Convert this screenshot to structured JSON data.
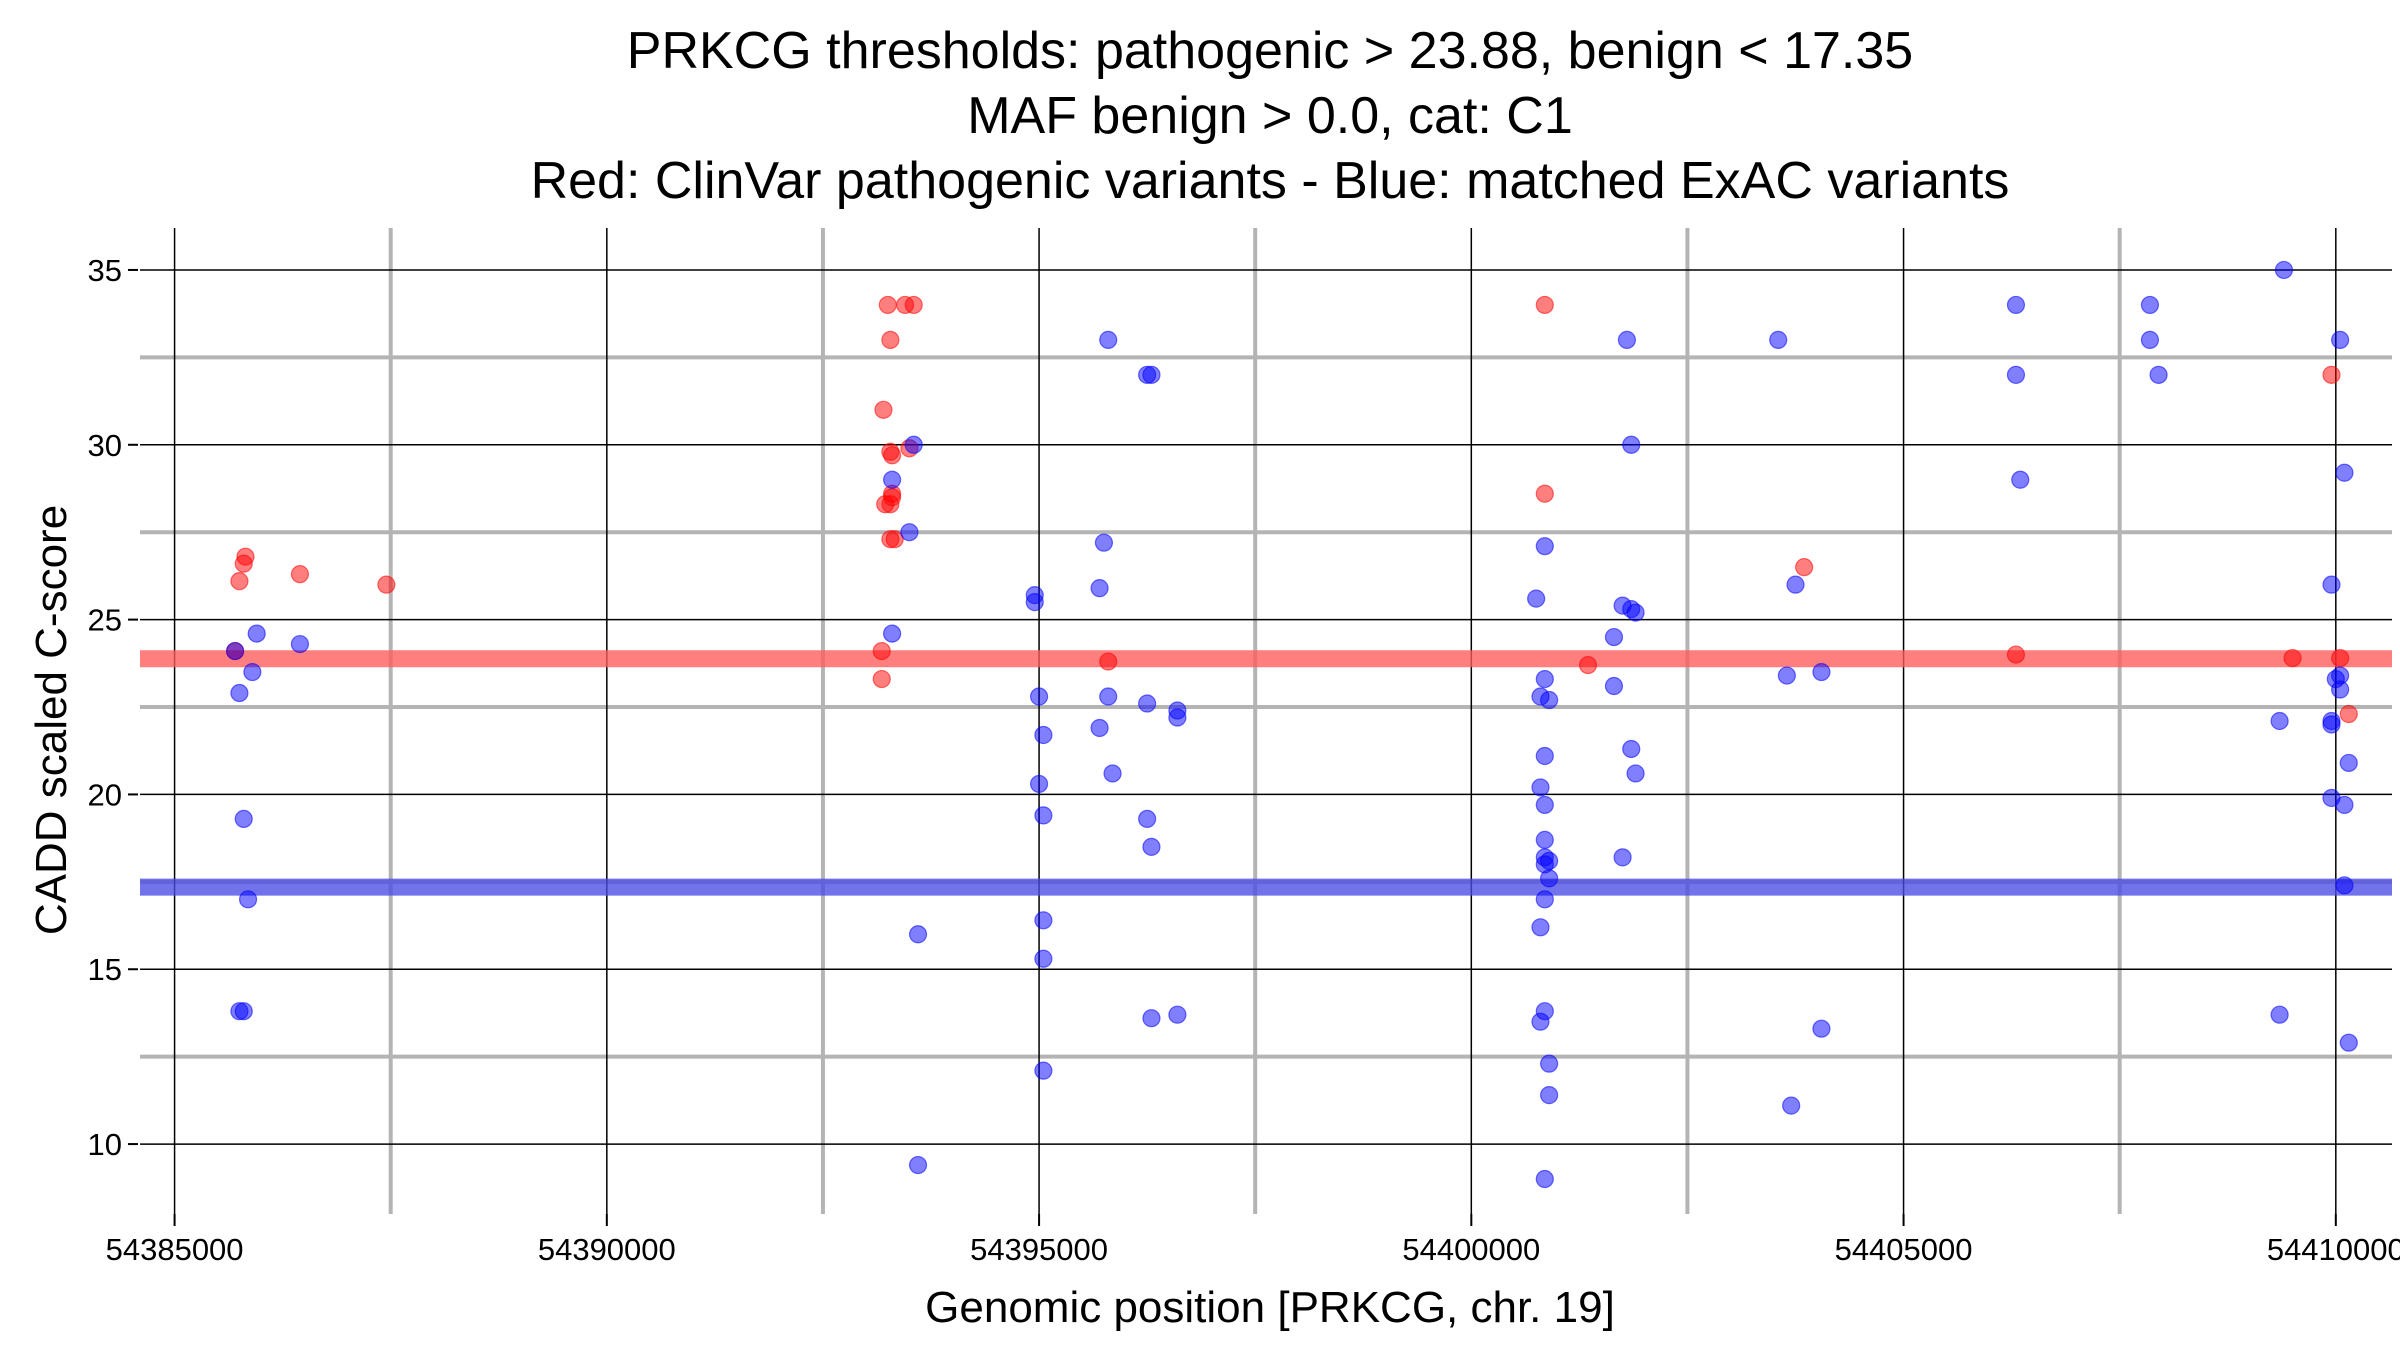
{
  "chart_data": {
    "type": "scatter",
    "title_lines": [
      "PRKCG thresholds: pathogenic > 23.88, benign < 17.35",
      "MAF benign > 0.0, cat: C1",
      "Red: ClinVar pathogenic variants - Blue: matched ExAC variants"
    ],
    "xlabel": "Genomic position [PRKCG, chr. 19]",
    "ylabel": "CADD scaled C-score",
    "xlim": [
      54384600,
      54410650
    ],
    "ylim": [
      8,
      36.2
    ],
    "x_ticks": [
      54385000,
      54390000,
      54395000,
      54400000,
      54405000,
      54410000
    ],
    "x_tick_labels": [
      "54385000",
      "54390000",
      "54395000",
      "54400000",
      "54405000",
      "54410000"
    ],
    "x_minor_grid": [
      54387500,
      54392500,
      54397500,
      54402500,
      54407500
    ],
    "y_ticks": [
      10,
      15,
      20,
      25,
      30,
      35
    ],
    "y_tick_labels": [
      "10",
      "15",
      "20",
      "25",
      "30",
      "35"
    ],
    "y_minor_grid": [
      12.5,
      17.5,
      22.5,
      27.5,
      32.5
    ],
    "grid": true,
    "thresholds": [
      {
        "name": "pathogenic",
        "value": 23.88,
        "color": "#ff5a5a"
      },
      {
        "name": "benign",
        "value": 17.35,
        "color": "#4a4ae6"
      }
    ],
    "series": [
      {
        "name": "ClinVar pathogenic",
        "color": "#ff0000",
        "points": [
          [
            54385750,
            26.1
          ],
          [
            54385800,
            26.6
          ],
          [
            54385820,
            26.8
          ],
          [
            54386450,
            26.3
          ],
          [
            54387450,
            26.0
          ],
          [
            54385700,
            24.1
          ],
          [
            54393250,
            34.0
          ],
          [
            54393450,
            34.0
          ],
          [
            54393550,
            34.0
          ],
          [
            54393280,
            33.0
          ],
          [
            54393200,
            31.0
          ],
          [
            54393280,
            29.8
          ],
          [
            54393300,
            29.7
          ],
          [
            54393500,
            29.9
          ],
          [
            54393300,
            28.6
          ],
          [
            54393300,
            28.5
          ],
          [
            54393280,
            28.3
          ],
          [
            54393220,
            28.3
          ],
          [
            54393280,
            27.3
          ],
          [
            54393330,
            27.3
          ],
          [
            54393180,
            24.1
          ],
          [
            54393180,
            23.3
          ],
          [
            54395800,
            23.8
          ],
          [
            54400850,
            34.0
          ],
          [
            54400850,
            28.6
          ],
          [
            54401350,
            23.7
          ],
          [
            54403850,
            26.5
          ],
          [
            54406300,
            24.0
          ],
          [
            54409950,
            32.0
          ],
          [
            54409500,
            23.9
          ],
          [
            54410050,
            23.9
          ],
          [
            54410150,
            22.3
          ]
        ]
      },
      {
        "name": "matched ExAC",
        "color": "#0000ff",
        "points": [
          [
            54385950,
            24.6
          ],
          [
            54386450,
            24.3
          ],
          [
            54385700,
            24.1
          ],
          [
            54385900,
            23.5
          ],
          [
            54385750,
            22.9
          ],
          [
            54385800,
            19.3
          ],
          [
            54385850,
            17.0
          ],
          [
            54385750,
            13.8
          ],
          [
            54385800,
            13.8
          ],
          [
            54393300,
            29.0
          ],
          [
            54393550,
            30.0
          ],
          [
            54393500,
            27.5
          ],
          [
            54393300,
            24.6
          ],
          [
            54393600,
            16.0
          ],
          [
            54393600,
            9.4
          ],
          [
            54394950,
            25.7
          ],
          [
            54394950,
            25.5
          ],
          [
            54395000,
            22.8
          ],
          [
            54395050,
            21.7
          ],
          [
            54395000,
            20.3
          ],
          [
            54395050,
            19.4
          ],
          [
            54395050,
            16.4
          ],
          [
            54395050,
            15.3
          ],
          [
            54395050,
            12.1
          ],
          [
            54395800,
            33.0
          ],
          [
            54396250,
            32.0
          ],
          [
            54396300,
            32.0
          ],
          [
            54395750,
            27.2
          ],
          [
            54395700,
            25.9
          ],
          [
            54395800,
            22.8
          ],
          [
            54395700,
            21.9
          ],
          [
            54395850,
            20.6
          ],
          [
            54396250,
            22.6
          ],
          [
            54396600,
            22.4
          ],
          [
            54396600,
            22.2
          ],
          [
            54396250,
            19.3
          ],
          [
            54396300,
            18.5
          ],
          [
            54396300,
            13.6
          ],
          [
            54396600,
            13.7
          ],
          [
            54401800,
            33.0
          ],
          [
            54401850,
            30.0
          ],
          [
            54400750,
            25.6
          ],
          [
            54400850,
            27.1
          ],
          [
            54401750,
            25.4
          ],
          [
            54401850,
            25.3
          ],
          [
            54401900,
            25.2
          ],
          [
            54401650,
            24.5
          ],
          [
            54401650,
            23.1
          ],
          [
            54400850,
            23.3
          ],
          [
            54400800,
            22.8
          ],
          [
            54400900,
            22.7
          ],
          [
            54400850,
            21.1
          ],
          [
            54401850,
            21.3
          ],
          [
            54401900,
            20.6
          ],
          [
            54400800,
            20.2
          ],
          [
            54400850,
            19.7
          ],
          [
            54400850,
            18.7
          ],
          [
            54400850,
            18.2
          ],
          [
            54400850,
            18.0
          ],
          [
            54400900,
            18.1
          ],
          [
            54401750,
            18.2
          ],
          [
            54400900,
            17.6
          ],
          [
            54400850,
            17.0
          ],
          [
            54400800,
            16.2
          ],
          [
            54400850,
            13.8
          ],
          [
            54400800,
            13.5
          ],
          [
            54400900,
            12.3
          ],
          [
            54400900,
            11.4
          ],
          [
            54400850,
            9.0
          ],
          [
            54403550,
            33.0
          ],
          [
            54403750,
            26.0
          ],
          [
            54403650,
            23.4
          ],
          [
            54404050,
            23.5
          ],
          [
            54404050,
            13.3
          ],
          [
            54403700,
            11.1
          ],
          [
            54406300,
            34.0
          ],
          [
            54406300,
            32.0
          ],
          [
            54406350,
            29.0
          ],
          [
            54407850,
            34.0
          ],
          [
            54407850,
            33.0
          ],
          [
            54407950,
            32.0
          ],
          [
            54409400,
            35.0
          ],
          [
            54410050,
            33.0
          ],
          [
            54410100,
            29.2
          ],
          [
            54409950,
            26.0
          ],
          [
            54409350,
            22.1
          ],
          [
            54409950,
            22.1
          ],
          [
            54409950,
            22.0
          ],
          [
            54410000,
            23.3
          ],
          [
            54410050,
            23.4
          ],
          [
            54410050,
            23.0
          ],
          [
            54410150,
            20.9
          ],
          [
            54409950,
            19.9
          ],
          [
            54410100,
            19.7
          ],
          [
            54410100,
            17.4
          ],
          [
            54409350,
            13.7
          ],
          [
            54410150,
            12.9
          ]
        ]
      }
    ]
  }
}
